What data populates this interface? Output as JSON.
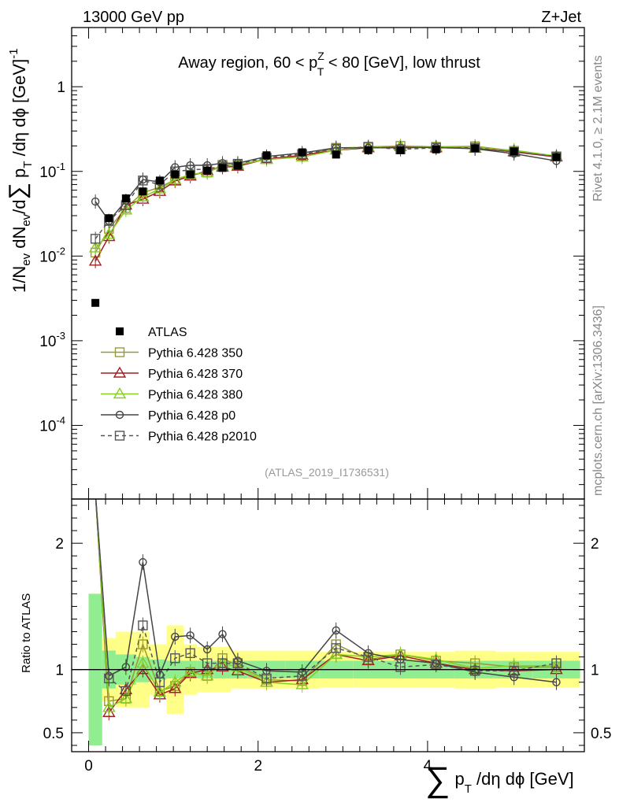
{
  "header": {
    "left": "13000 GeV pp",
    "right": "Z+Jet"
  },
  "side_labels": {
    "rivet": "Rivet 4.1.0, ≥ 2.1M events",
    "source": "mcplots.cern.ch [arXiv:1306.3436]"
  },
  "main_title": "Away region, 60 < p^Z_T < 80 [GeV], low thrust",
  "analysis_id": "(ATLAS_2019_I1736531)",
  "y_axis_label_top": "1/N_ev dN_ev/d∑ p_T /dη dϕ  [GeV]^-1",
  "y_axis_label_bottom": "Ratio to ATLAS",
  "x_axis_label": "∑ p_T /dη dϕ [GeV]",
  "colors": {
    "data": "#000000",
    "p350": "#9a9a32",
    "p370": "#a01e23",
    "p380": "#88cc22",
    "p0": "#444444",
    "p2010": "#555555",
    "band_inner": "#90ee90",
    "band_outer": "#ffff88"
  },
  "chart_data": [
    {
      "type": "line",
      "panel": "main",
      "title": "Away region, 60 < p^Z_T < 80 [GeV], low thrust",
      "xlabel": "∑ p_T /dη dϕ [GeV]",
      "ylabel": "1/N_ev dN_ev/d∑ p_T /dη dϕ [GeV]^-1",
      "yscale": "log",
      "xlim": [
        -0.2,
        5.85
      ],
      "ylim": [
        1.35e-05,
        5
      ],
      "x_ticks": [
        "0",
        "2",
        "4"
      ],
      "y_ticks": [
        "10^-4",
        "10^-3",
        "10^-2",
        "10^-1",
        "1"
      ],
      "legend_position": "middle-left",
      "x": [
        0.08,
        0.24,
        0.44,
        0.64,
        0.84,
        1.02,
        1.2,
        1.4,
        1.58,
        1.76,
        2.1,
        2.52,
        2.92,
        3.3,
        3.68,
        4.1,
        4.56,
        5.02,
        5.52
      ],
      "data_series": {
        "name": "ATLAS",
        "values": [
          0.0028,
          0.028,
          0.048,
          0.058,
          0.078,
          0.092,
          0.092,
          0.102,
          0.11,
          0.117,
          0.155,
          0.168,
          0.158,
          0.178,
          0.178,
          0.182,
          0.188,
          0.172,
          0.148
        ]
      },
      "series": [
        {
          "name": "Pythia 6.428 350",
          "key": "p350",
          "marker": "square-open",
          "dash": false,
          "values": [
            0.011,
            0.021,
            0.037,
            0.056,
            0.065,
            0.08,
            0.091,
            0.097,
            0.12,
            0.12,
            0.14,
            0.152,
            0.19,
            0.192,
            0.2,
            0.195,
            0.198,
            0.175,
            0.15
          ]
        },
        {
          "name": "Pythia 6.428 370",
          "key": "p370",
          "marker": "triangle-open",
          "dash": false,
          "values": [
            0.0087,
            0.017,
            0.04,
            0.047,
            0.058,
            0.077,
            0.088,
            0.102,
            0.112,
            0.115,
            0.14,
            0.155,
            0.178,
            0.19,
            0.197,
            0.19,
            0.188,
            0.17,
            0.148
          ]
        },
        {
          "name": "Pythia 6.428 380",
          "key": "p380",
          "marker": "triangle-open",
          "dash": false,
          "values": [
            0.0125,
            0.018,
            0.035,
            0.05,
            0.062,
            0.08,
            0.092,
            0.097,
            0.116,
            0.12,
            0.138,
            0.148,
            0.178,
            0.195,
            0.2,
            0.195,
            0.19,
            0.178,
            0.152
          ]
        },
        {
          "name": "Pythia 6.428 p0",
          "key": "p0",
          "marker": "circle-open",
          "dash": false,
          "values": [
            0.044,
            0.026,
            0.045,
            0.08,
            0.075,
            0.112,
            0.118,
            0.118,
            0.125,
            0.125,
            0.15,
            0.165,
            0.19,
            0.19,
            0.19,
            0.192,
            0.185,
            0.162,
            0.133
          ]
        },
        {
          "name": "Pythia 6.428 p2010",
          "key": "p2010",
          "marker": "square-open",
          "dash": true,
          "values": [
            0.016,
            0.026,
            0.04,
            0.078,
            0.07,
            0.1,
            0.104,
            0.107,
            0.115,
            0.123,
            0.145,
            0.16,
            0.185,
            0.195,
            0.182,
            0.19,
            0.19,
            0.17,
            0.15
          ]
        }
      ]
    },
    {
      "type": "line",
      "panel": "ratio",
      "ylabel": "Ratio to ATLAS",
      "ylim": [
        0.35,
        2.35
      ],
      "y_ticks": [
        "0.5",
        "1",
        "2"
      ],
      "x": [
        0.08,
        0.24,
        0.44,
        0.64,
        0.84,
        1.02,
        1.2,
        1.4,
        1.58,
        1.76,
        2.1,
        2.52,
        2.92,
        3.3,
        3.68,
        4.1,
        4.56,
        5.02,
        5.52
      ],
      "bins": [
        [
          0,
          0.16
        ],
        [
          0.16,
          0.32
        ],
        [
          0.32,
          0.56
        ],
        [
          0.56,
          0.72
        ],
        [
          0.72,
          0.92
        ],
        [
          0.92,
          1.12
        ],
        [
          1.12,
          1.28
        ],
        [
          1.28,
          1.48
        ],
        [
          1.48,
          1.68
        ],
        [
          1.68,
          1.88
        ],
        [
          1.88,
          2.32
        ],
        [
          2.32,
          2.72
        ],
        [
          2.72,
          3.12
        ],
        [
          3.12,
          3.48
        ],
        [
          3.48,
          3.88
        ],
        [
          3.88,
          4.32
        ],
        [
          4.32,
          4.8
        ],
        [
          4.8,
          5.24
        ],
        [
          5.24,
          5.8
        ]
      ],
      "band_inner": [
        0.6,
        0.15,
        0.12,
        0.1,
        0.08,
        0.07,
        0.07,
        0.07,
        0.07,
        0.07,
        0.07,
        0.07,
        0.07,
        0.07,
        0.07,
        0.07,
        0.07,
        0.07,
        0.07
      ],
      "band_outer": [
        0.6,
        0.25,
        0.3,
        0.3,
        0.2,
        0.35,
        0.2,
        0.18,
        0.18,
        0.15,
        0.15,
        0.15,
        0.14,
        0.14,
        0.14,
        0.14,
        0.15,
        0.14,
        0.14
      ],
      "series": [
        {
          "name": "Pythia 6.428 350",
          "key": "p350",
          "values": [
            2.4,
            0.75,
            0.77,
            1.2,
            0.83,
            0.87,
            0.98,
            0.95,
            1.09,
            1.03,
            0.92,
            0.91,
            1.2,
            1.08,
            1.12,
            1.07,
            1.05,
            1.02,
            1.02
          ]
        },
        {
          "name": "Pythia 6.428 370",
          "key": "p370",
          "values": [
            2.4,
            0.66,
            0.84,
            1.0,
            0.8,
            0.85,
            0.97,
            1.0,
            1.02,
            0.99,
            0.9,
            0.92,
            1.12,
            1.07,
            1.11,
            1.05,
            1.0,
            0.99,
            1.0
          ]
        },
        {
          "name": "Pythia 6.428 380",
          "key": "p380",
          "values": [
            2.4,
            0.7,
            0.77,
            1.05,
            0.82,
            0.9,
            0.98,
            0.95,
            1.05,
            1.02,
            0.9,
            0.88,
            1.12,
            1.1,
            1.12,
            1.08,
            1.01,
            1.03,
            1.03
          ]
        },
        {
          "name": "Pythia 6.428 p0",
          "key": "p0",
          "values": [
            2.4,
            0.95,
            1.02,
            1.85,
            0.96,
            1.26,
            1.27,
            1.16,
            1.28,
            1.07,
            0.99,
            0.98,
            1.31,
            1.13,
            1.08,
            1.05,
            0.98,
            0.94,
            0.9
          ]
        },
        {
          "name": "Pythia 6.428 p2010",
          "key": "p2010",
          "values": [
            2.4,
            0.93,
            0.83,
            1.35,
            0.9,
            1.09,
            1.13,
            1.05,
            1.05,
            1.05,
            0.93,
            0.95,
            1.17,
            1.1,
            1.02,
            1.04,
            0.99,
            0.99,
            1.05
          ]
        }
      ]
    }
  ]
}
